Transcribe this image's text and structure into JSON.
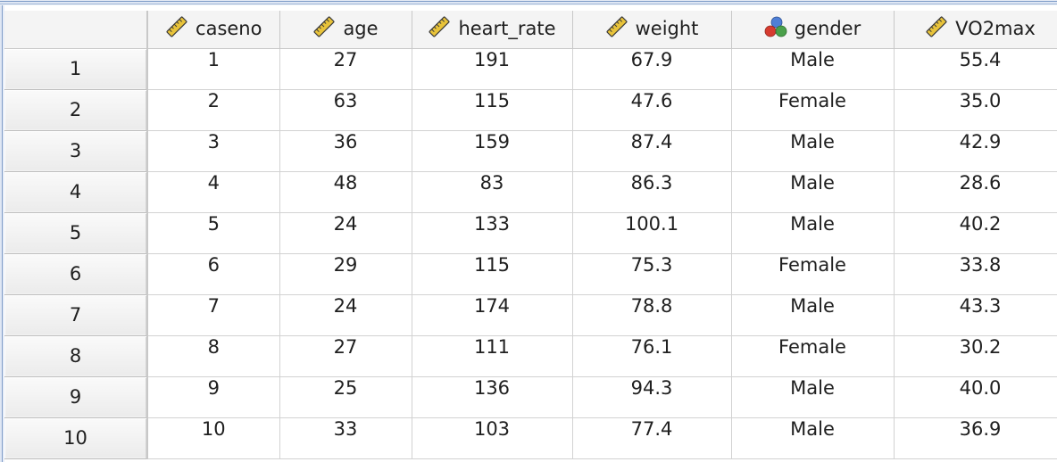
{
  "colors": {
    "header_bg": "#f4f4f4",
    "grid_line": "#d2d2d2",
    "ruler_icon": "#e8c33a",
    "nominal_icon_red": "#d63b2f",
    "nominal_icon_green": "#4aa04a",
    "nominal_icon_blue": "#4f7fd6"
  },
  "columns": [
    {
      "label": "caseno",
      "icon": "ruler-icon"
    },
    {
      "label": "age",
      "icon": "ruler-icon"
    },
    {
      "label": "heart_rate",
      "icon": "ruler-icon"
    },
    {
      "label": "weight",
      "icon": "ruler-icon"
    },
    {
      "label": "gender",
      "icon": "nominal-icon"
    },
    {
      "label": "VO2max",
      "icon": "ruler-icon"
    }
  ],
  "rows": [
    {
      "num": "1",
      "cells": [
        "1",
        "27",
        "191",
        "67.9",
        "Male",
        "55.4"
      ]
    },
    {
      "num": "2",
      "cells": [
        "2",
        "63",
        "115",
        "47.6",
        "Female",
        "35.0"
      ]
    },
    {
      "num": "3",
      "cells": [
        "3",
        "36",
        "159",
        "87.4",
        "Male",
        "42.9"
      ]
    },
    {
      "num": "4",
      "cells": [
        "4",
        "48",
        "83",
        "86.3",
        "Male",
        "28.6"
      ]
    },
    {
      "num": "5",
      "cells": [
        "5",
        "24",
        "133",
        "100.1",
        "Male",
        "40.2"
      ]
    },
    {
      "num": "6",
      "cells": [
        "6",
        "29",
        "115",
        "75.3",
        "Female",
        "33.8"
      ]
    },
    {
      "num": "7",
      "cells": [
        "7",
        "24",
        "174",
        "78.8",
        "Male",
        "43.3"
      ]
    },
    {
      "num": "8",
      "cells": [
        "8",
        "27",
        "111",
        "76.1",
        "Female",
        "30.2"
      ]
    },
    {
      "num": "9",
      "cells": [
        "9",
        "25",
        "136",
        "94.3",
        "Male",
        "40.0"
      ]
    },
    {
      "num": "10",
      "cells": [
        "10",
        "33",
        "103",
        "77.4",
        "Male",
        "36.9"
      ]
    }
  ]
}
